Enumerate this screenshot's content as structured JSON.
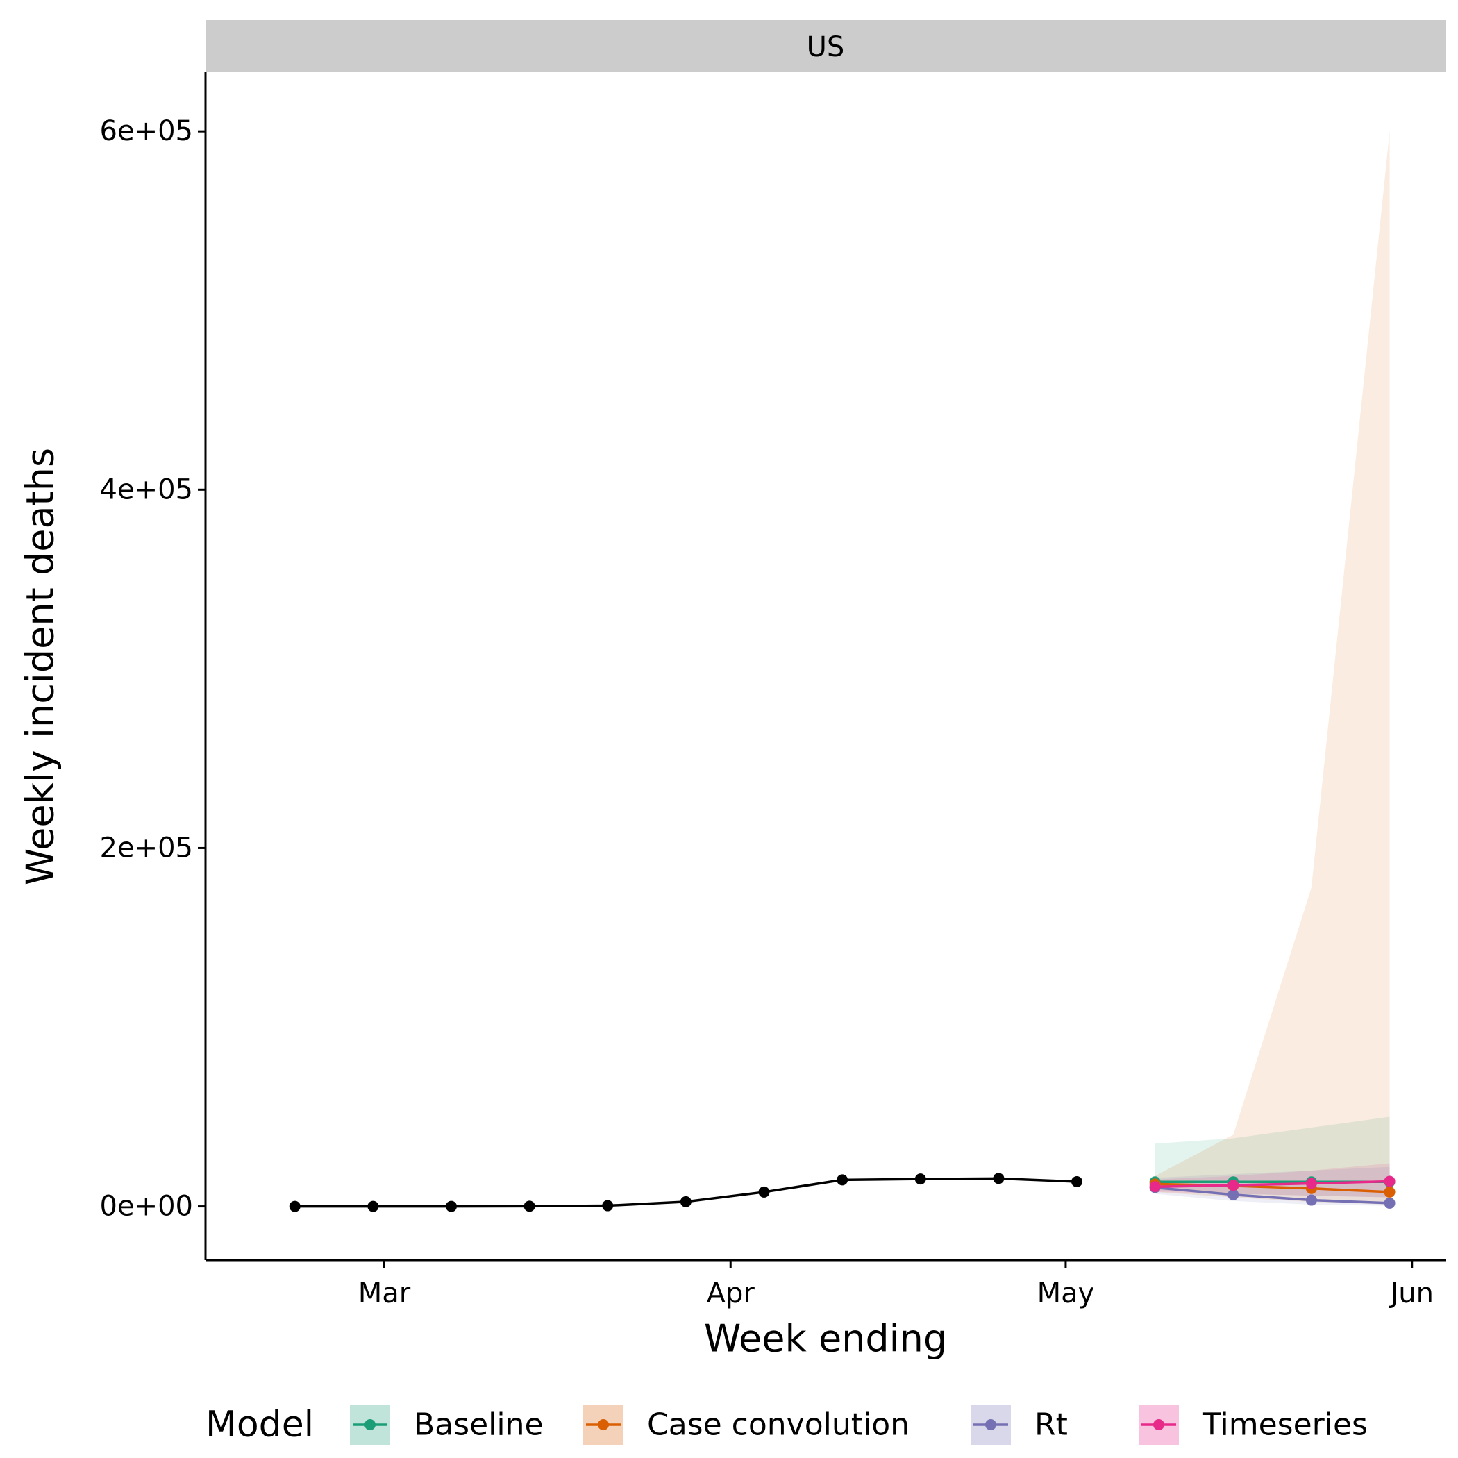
{
  "chart_data": {
    "type": "line",
    "facet_label": "US",
    "xlabel": "Week ending",
    "ylabel": "Weekly incident deaths",
    "x_ticks": [
      {
        "date": "2020-03-01",
        "label": "Mar"
      },
      {
        "date": "2020-04-01",
        "label": "Apr"
      },
      {
        "date": "2020-05-01",
        "label": "May"
      },
      {
        "date": "2020-06-01",
        "label": "Jun"
      }
    ],
    "y_ticks": [
      {
        "value": 0,
        "label": "0e+00"
      },
      {
        "value": 200000,
        "label": "2e+05"
      },
      {
        "value": 400000,
        "label": "4e+05"
      },
      {
        "value": 600000,
        "label": "6e+05"
      }
    ],
    "xlim": [
      "2020-02-14",
      "2020-06-04"
    ],
    "ylim": [
      -30000,
      633000
    ],
    "observed": {
      "color": "#000000",
      "x": [
        "2020-02-22",
        "2020-02-29",
        "2020-03-07",
        "2020-03-14",
        "2020-03-21",
        "2020-03-28",
        "2020-04-04",
        "2020-04-11",
        "2020-04-18",
        "2020-04-25",
        "2020-05-02"
      ],
      "y": [
        0,
        0,
        0,
        100,
        400,
        2600,
        8000,
        14800,
        15300,
        15600,
        13800
      ]
    },
    "legend": {
      "title": "Model",
      "position": "bottom"
    },
    "series": [
      {
        "name": "Baseline",
        "color": "#1B9E77",
        "x": [
          "2020-05-09",
          "2020-05-16",
          "2020-05-23",
          "2020-05-30"
        ],
        "y": [
          13700,
          13700,
          13700,
          13700
        ],
        "lower": [
          9000,
          7000,
          6000,
          5000
        ],
        "upper": [
          35000,
          38000,
          44000,
          50000
        ]
      },
      {
        "name": "Case convolution",
        "color": "#D95F02",
        "x": [
          "2020-05-09",
          "2020-05-16",
          "2020-05-23",
          "2020-05-30"
        ],
        "y": [
          12500,
          11500,
          10000,
          8000
        ],
        "lower": [
          8000,
          5000,
          2500,
          1000
        ],
        "upper": [
          17000,
          40000,
          178000,
          600000
        ]
      },
      {
        "name": "Rt",
        "color": "#7570B3",
        "x": [
          "2020-05-09",
          "2020-05-16",
          "2020-05-23",
          "2020-05-30"
        ],
        "y": [
          10500,
          6500,
          3500,
          1800
        ],
        "lower": [
          7000,
          3000,
          1000,
          300
        ],
        "upper": [
          16000,
          18000,
          20000,
          22000
        ]
      },
      {
        "name": "Timeseries",
        "color": "#E7298A",
        "x": [
          "2020-05-09",
          "2020-05-16",
          "2020-05-23",
          "2020-05-30"
        ],
        "y": [
          11000,
          11800,
          12800,
          14000
        ],
        "lower": [
          8000,
          7000,
          6000,
          5000
        ],
        "upper": [
          15000,
          17000,
          20000,
          24000
        ]
      }
    ]
  }
}
